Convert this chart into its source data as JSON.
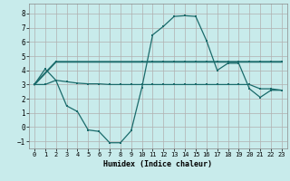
{
  "xlabel": "Humidex (Indice chaleur)",
  "ylabel": "",
  "xlim": [
    -0.5,
    23.5
  ],
  "ylim": [
    -1.5,
    8.7
  ],
  "xticks": [
    0,
    1,
    2,
    3,
    4,
    5,
    6,
    7,
    8,
    9,
    10,
    11,
    12,
    13,
    14,
    15,
    16,
    17,
    18,
    19,
    20,
    21,
    22,
    23
  ],
  "yticks": [
    -1,
    0,
    1,
    2,
    3,
    4,
    5,
    6,
    7,
    8
  ],
  "background_color": "#c8ebeb",
  "grid_color": "#b0b0b0",
  "line_color": "#1a6b6b",
  "curve1_x": [
    0,
    1,
    2,
    3,
    4,
    5,
    6,
    7,
    8,
    9,
    10,
    11,
    12,
    13,
    14,
    15,
    16,
    17,
    18,
    19,
    20,
    21,
    22,
    23
  ],
  "curve1_y": [
    3.0,
    4.1,
    3.3,
    1.5,
    1.1,
    -0.2,
    -0.3,
    -1.1,
    -1.1,
    -0.25,
    2.8,
    6.5,
    7.1,
    7.8,
    7.85,
    7.8,
    6.1,
    4.0,
    4.5,
    4.5,
    2.7,
    2.1,
    2.6,
    2.6
  ],
  "curve2_x": [
    0,
    1,
    2,
    3,
    4,
    5,
    6,
    7,
    8,
    9,
    10,
    11,
    12,
    13,
    14,
    15,
    16,
    17,
    18,
    19,
    20,
    21,
    22,
    23
  ],
  "curve2_y": [
    3.0,
    3.0,
    3.3,
    3.2,
    3.1,
    3.05,
    3.05,
    3.0,
    3.0,
    3.0,
    3.0,
    3.0,
    3.0,
    3.0,
    3.0,
    3.0,
    3.0,
    3.0,
    3.0,
    3.0,
    3.0,
    2.7,
    2.7,
    2.6
  ],
  "curve3_x": [
    0,
    2,
    10,
    11,
    12,
    13,
    14,
    15,
    16,
    17,
    18,
    19,
    20,
    21,
    22,
    23
  ],
  "curve3_y": [
    3.0,
    4.6,
    4.6,
    4.6,
    4.6,
    4.6,
    4.6,
    4.6,
    4.6,
    4.6,
    4.6,
    4.6,
    4.6,
    4.6,
    4.6,
    4.6
  ]
}
